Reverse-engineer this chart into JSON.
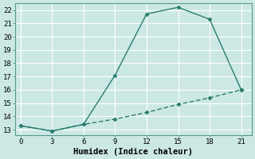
{
  "title": "",
  "xlabel": "Humidex (Indice chaleur)",
  "bg_color": "#cce8e4",
  "plot_bg_color": "#cce8e4",
  "grid_color": "#ffffff",
  "line_color": "#2a7d6e",
  "spine_color": "#5a9a8a",
  "line1_x": [
    0,
    3,
    6,
    9,
    12,
    15,
    18,
    21
  ],
  "line1_y": [
    13.3,
    12.9,
    13.4,
    17.1,
    21.7,
    22.2,
    21.3,
    16.0
  ],
  "line2_x": [
    0,
    3,
    6,
    9,
    12,
    15,
    18,
    21
  ],
  "line2_y": [
    13.3,
    12.9,
    13.4,
    13.8,
    14.3,
    14.9,
    15.4,
    16.0
  ],
  "xlim": [
    -0.5,
    22.0
  ],
  "ylim": [
    12.6,
    22.5
  ],
  "xticks": [
    0,
    3,
    6,
    9,
    12,
    15,
    18,
    21
  ],
  "yticks": [
    13,
    14,
    15,
    16,
    17,
    18,
    19,
    20,
    21,
    22
  ],
  "marker": "D",
  "markersize": 2.5,
  "linewidth": 1.0,
  "tick_fontsize": 6.5,
  "xlabel_fontsize": 7.5
}
